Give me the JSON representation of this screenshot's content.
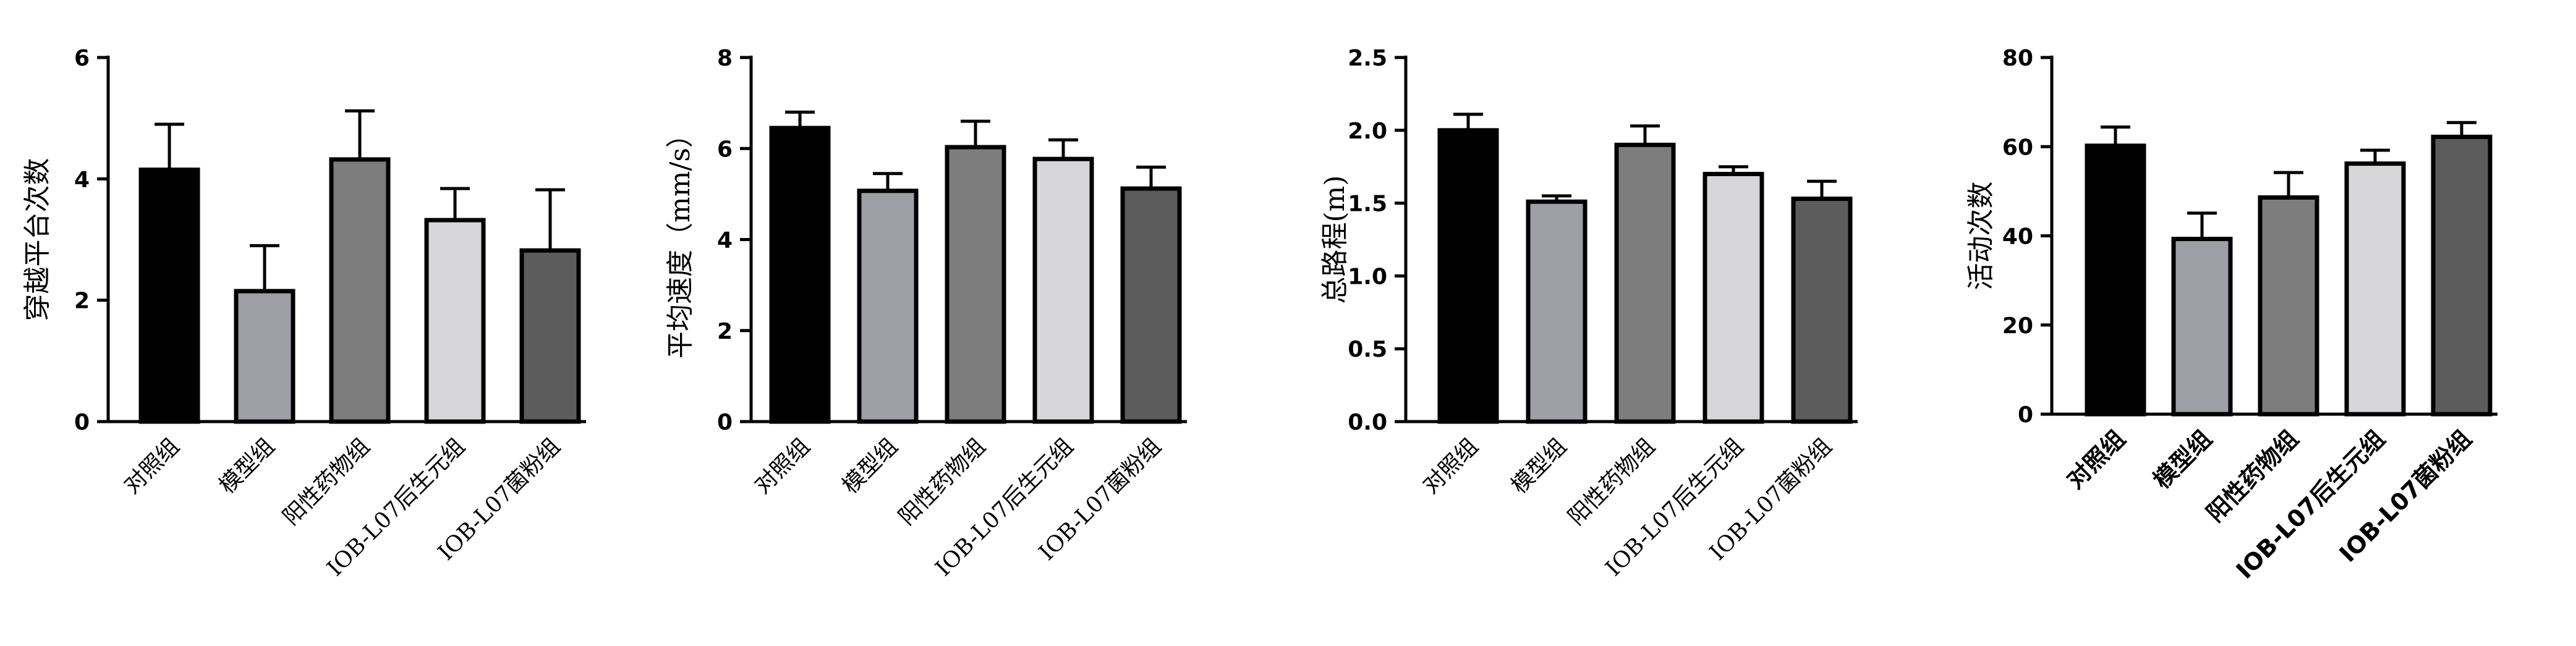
{
  "figure": {
    "colors": [
      "#000000",
      "#9e9fa6",
      "#7d7d7d",
      "#d7d7d9",
      "#5c5c5c"
    ]
  },
  "chart_data": [
    {
      "type": "bar",
      "ylabel": "穿越平台次数",
      "categories": [
        "对照组",
        "模型组",
        "阳性药物组",
        "IOB-L07后生元组",
        "IOB-L07菌粉组"
      ],
      "values": [
        4.15,
        2.15,
        4.32,
        3.32,
        2.82
      ],
      "errors": [
        0.75,
        0.75,
        0.8,
        0.52,
        1.0
      ],
      "ylim": [
        0,
        6
      ],
      "yticks": [
        "0",
        "2",
        "4",
        "6"
      ],
      "bold_xticks": false
    },
    {
      "type": "bar",
      "ylabel": "平均速度（mm/s）",
      "categories": [
        "对照组",
        "模型组",
        "阳性药物组",
        "IOB-L07后生元组",
        "IOB-L07菌粉组"
      ],
      "values": [
        6.45,
        5.07,
        6.03,
        5.77,
        5.12
      ],
      "errors": [
        0.35,
        0.38,
        0.57,
        0.42,
        0.47
      ],
      "ylim": [
        0,
        8
      ],
      "yticks": [
        "0",
        "2",
        "4",
        "6",
        "8"
      ],
      "bold_xticks": false
    },
    {
      "type": "bar",
      "ylabel": "总路程(m)",
      "categories": [
        "对照组",
        "模型组",
        "阳性药物组",
        "IOB-L07后生元组",
        "IOB-L07菌粉组"
      ],
      "values": [
        2.0,
        1.51,
        1.9,
        1.7,
        1.53
      ],
      "errors": [
        0.11,
        0.04,
        0.13,
        0.05,
        0.12
      ],
      "ylim": [
        0,
        2.5
      ],
      "yticks": [
        "0.0",
        "0.5",
        "1.0",
        "1.5",
        "2.0",
        "2.5"
      ],
      "bold_xticks": false
    },
    {
      "type": "bar",
      "ylabel": "活动次数",
      "categories": [
        "对照组",
        "模型组",
        "阳性药物组",
        "IOB-L07后生元组",
        "IOB-L07菌粉组"
      ],
      "values": [
        60.2,
        39.3,
        48.6,
        56.2,
        62.2
      ],
      "errors": [
        4.2,
        5.8,
        5.6,
        3.0,
        3.2
      ],
      "ylim": [
        0,
        80
      ],
      "yticks": [
        "0",
        "20",
        "40",
        "60",
        "80"
      ],
      "bold_xticks": true
    }
  ]
}
